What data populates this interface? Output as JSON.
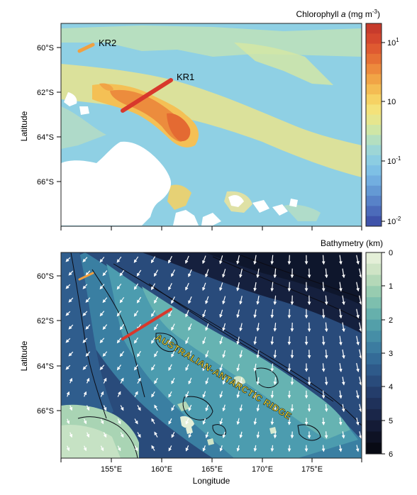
{
  "top_panel": {
    "colorbar_title_prefix": "Chlorophyll ",
    "colorbar_title_italic": "a",
    "colorbar_title_suffix": " (mg m",
    "colorbar_title_exp": "-3",
    "colorbar_title_close": ")",
    "colorbar_ticks": [
      {
        "base": "10",
        "exp": "1"
      },
      {
        "base": "10",
        "exp": ""
      },
      {
        "base": "10",
        "exp": "-1"
      },
      {
        "base": "10",
        "exp": "-2"
      }
    ],
    "colorbar_colors": [
      "#c73b2c",
      "#d4472e",
      "#df5a31",
      "#e67035",
      "#ed8a3d",
      "#f1a446",
      "#f4bc53",
      "#f6d264",
      "#f4e27a",
      "#e6e68e",
      "#cfe6a6",
      "#b4dfc0",
      "#9dd6d6",
      "#8ccde2",
      "#7ec0e5",
      "#72aee0",
      "#6499d4",
      "#5882c8",
      "#4c6bba",
      "#3f53aa"
    ],
    "ylabel": "Latitude",
    "yticks": [
      "60°S",
      "62°S",
      "64°S",
      "66°S"
    ],
    "transects": [
      {
        "label": "KR2",
        "color": "#f0a040"
      },
      {
        "label": "KR1",
        "color": "#d8382c"
      }
    ]
  },
  "bottom_panel": {
    "colorbar_title": "Bathymetry (km)",
    "colorbar_ticks": [
      "0",
      "1",
      "2",
      "3",
      "4",
      "5",
      "6"
    ],
    "colorbar_colors": [
      "#e4efd8",
      "#cfe4c6",
      "#b4d8b8",
      "#97ccb0",
      "#7dbfae",
      "#66b0ac",
      "#539fa9",
      "#468ea6",
      "#3c7ca0",
      "#346b97",
      "#2e5a8a",
      "#294b7b",
      "#243d6b",
      "#1f315a",
      "#1a2649",
      "#141b36",
      "#0e1224",
      "#080a14"
    ],
    "ylabel": "Latitude",
    "yticks": [
      "60°S",
      "62°S",
      "64°S",
      "66°S"
    ],
    "xlabel": "Longitude",
    "xticks": [
      "155°E",
      "160°E",
      "165°E",
      "170°E",
      "175°E"
    ],
    "ridge_label": "AUSTRALIAN-ANTARCTIC RIDGE"
  }
}
